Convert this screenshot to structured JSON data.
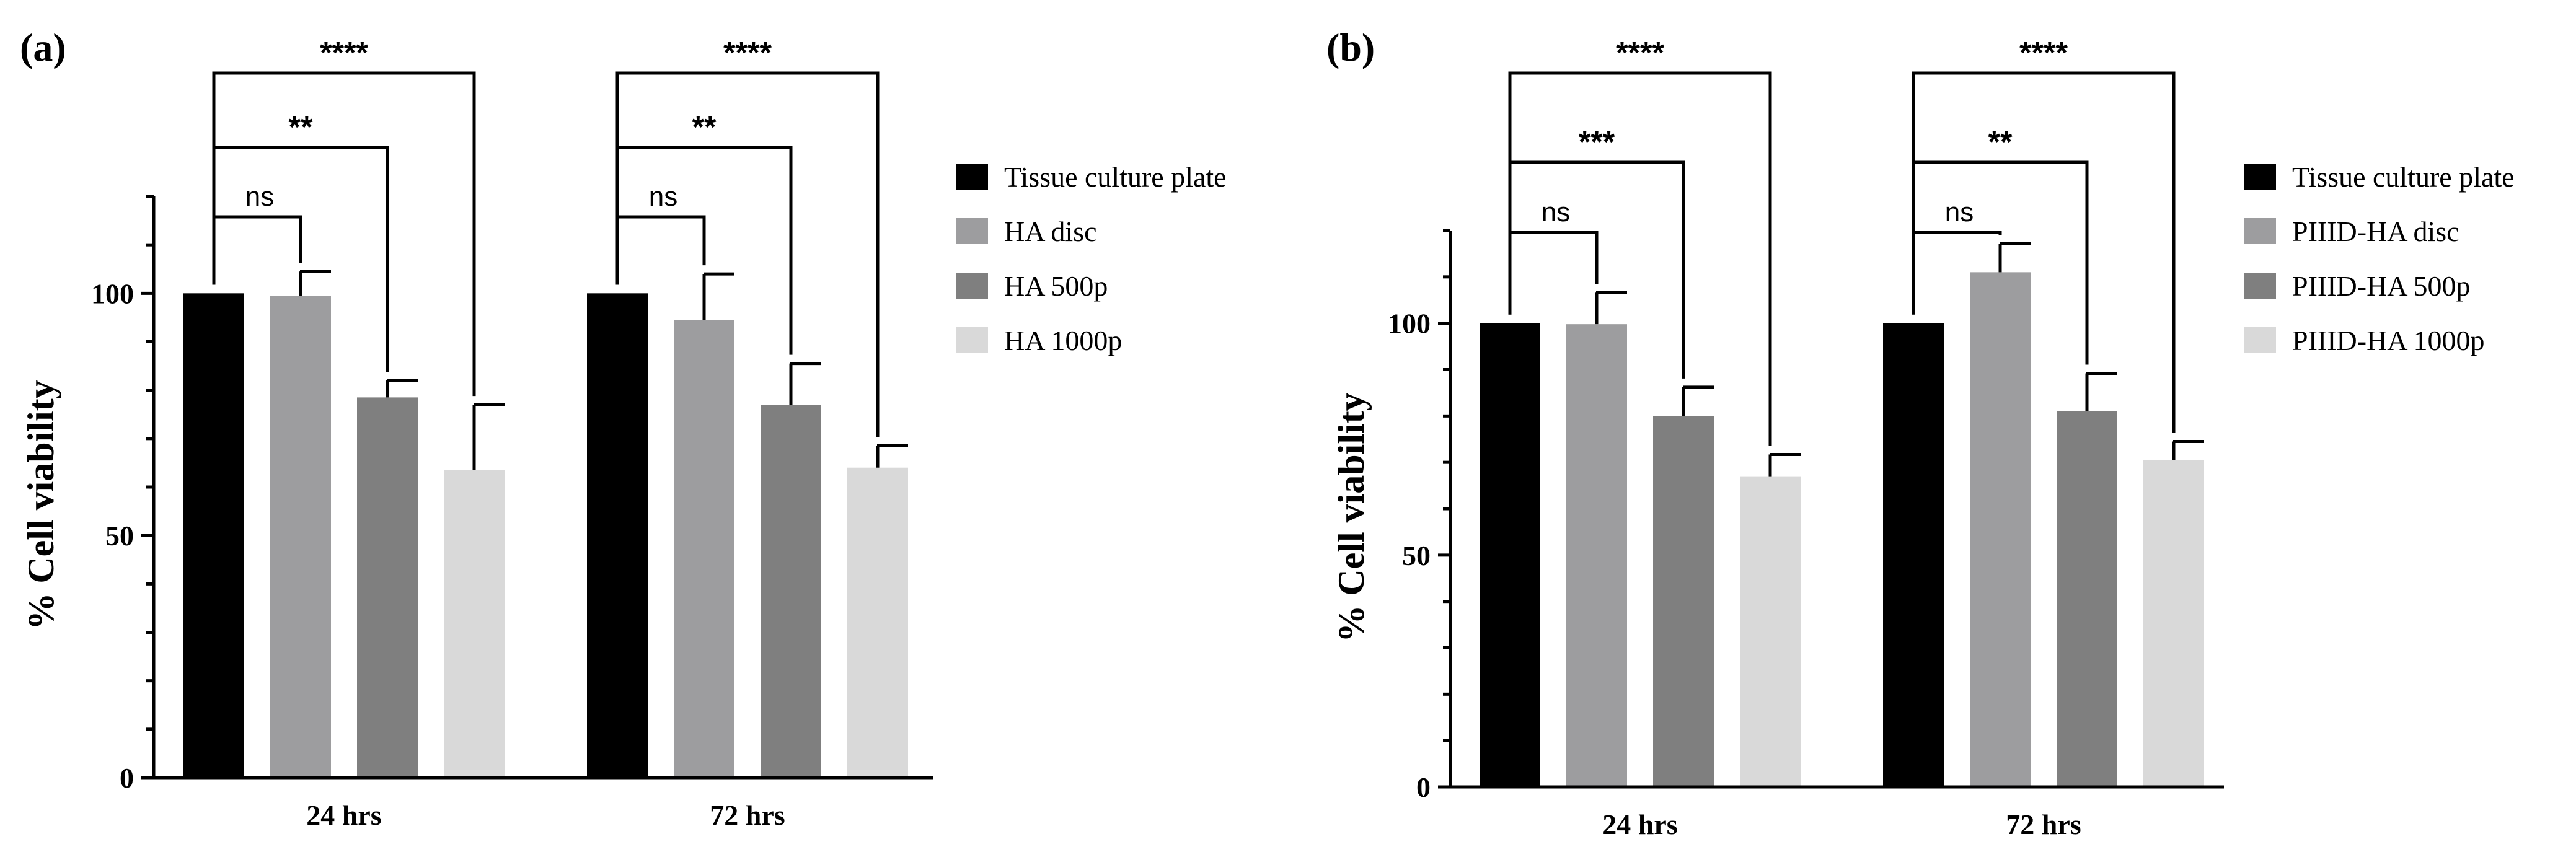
{
  "chart_data": [
    {
      "type": "bar",
      "panel_label": "(a)",
      "title": "",
      "xlabel": "",
      "ylabel": "% Cell viability",
      "ylim": [
        0,
        120
      ],
      "yticks": [
        0,
        50,
        100
      ],
      "categories": [
        "24 hrs",
        "72 hrs"
      ],
      "series": [
        {
          "name": "Tissue culture plate",
          "color": "#000000",
          "values": [
            100,
            100
          ],
          "errors": [
            0,
            0
          ]
        },
        {
          "name": "HA disc",
          "color": "#9d9d9f",
          "values": [
            99.5,
            94.5
          ],
          "errors": [
            5,
            9.5
          ]
        },
        {
          "name": "HA 500p",
          "color": "#7f7f7f",
          "values": [
            78.5,
            77
          ],
          "errors": [
            3.5,
            8.5
          ]
        },
        {
          "name": "HA 1000p",
          "color": "#d9d9d9",
          "values": [
            63.5,
            64
          ],
          "errors": [
            13.5,
            4.5
          ]
        }
      ],
      "significance": [
        {
          "category": 0,
          "to": 1,
          "label": "ns",
          "level": 0
        },
        {
          "category": 0,
          "to": 2,
          "label": "**",
          "level": 1
        },
        {
          "category": 0,
          "to": 3,
          "label": "****",
          "level": 2
        },
        {
          "category": 1,
          "to": 1,
          "label": "ns",
          "level": 0
        },
        {
          "category": 1,
          "to": 2,
          "label": "**",
          "level": 1
        },
        {
          "category": 1,
          "to": 3,
          "label": "****",
          "level": 2
        }
      ]
    },
    {
      "type": "bar",
      "panel_label": "(b)",
      "title": "",
      "xlabel": "",
      "ylabel": "% Cell viability",
      "ylim": [
        0,
        120
      ],
      "yticks": [
        0,
        50,
        100
      ],
      "categories": [
        "24 hrs",
        "72 hrs"
      ],
      "series": [
        {
          "name": "Tissue culture plate",
          "color": "#000000",
          "values": [
            100,
            100
          ],
          "errors": [
            0,
            0
          ]
        },
        {
          "name": "PIIID-HA disc",
          "color": "#9d9d9f",
          "values": [
            99.8,
            111
          ],
          "errors": [
            6.8,
            6.2
          ]
        },
        {
          "name": "PIIID-HA 500p",
          "color": "#7f7f7f",
          "values": [
            80,
            81
          ],
          "errors": [
            6.2,
            8.2
          ]
        },
        {
          "name": "PIIID-HA 1000p",
          "color": "#d9d9d9",
          "values": [
            67,
            70.5
          ],
          "errors": [
            4.7,
            4
          ]
        }
      ],
      "significance": [
        {
          "category": 0,
          "to": 1,
          "label": "ns",
          "level": 0
        },
        {
          "category": 0,
          "to": 2,
          "label": "***",
          "level": 1
        },
        {
          "category": 0,
          "to": 3,
          "label": "****",
          "level": 2
        },
        {
          "category": 1,
          "to": 1,
          "label": "ns",
          "level": 0
        },
        {
          "category": 1,
          "to": 2,
          "label": "**",
          "level": 1
        },
        {
          "category": 1,
          "to": 3,
          "label": "****",
          "level": 2
        }
      ]
    }
  ]
}
